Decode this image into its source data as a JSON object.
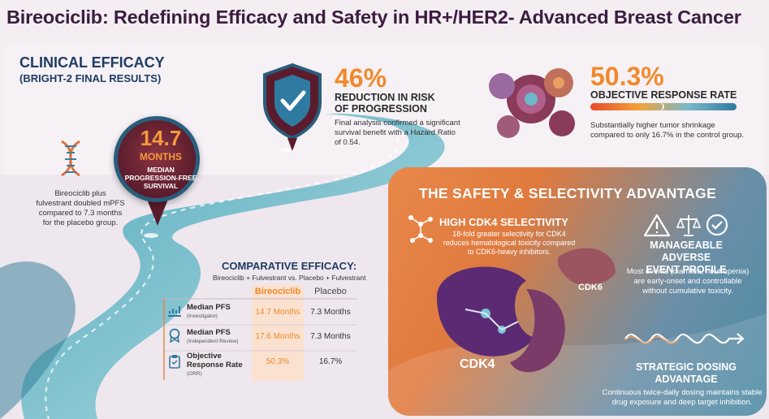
{
  "title": "Bireociclib: Redefining Efficacy and Safety in HR+/HER2- Advanced Breast Cancer",
  "efficacy": {
    "heading": "CLINICAL EFFICACY",
    "subheading": "(BRIGHT-2 FINAL RESULTS)",
    "pfs": {
      "value": "14.7",
      "unit": "MONTHS",
      "label_line1": "MEDIAN",
      "label_line2": "PROGRESSION-FREE",
      "label_line3": "SURVIVAL"
    },
    "pfs_note_line1": "Bireociclib plus",
    "pfs_note_line2": "fulvestrant doubled mPFS",
    "pfs_note_line3": "compared to 7.3 months",
    "pfs_note_line4": "for the placebo group.",
    "risk": {
      "value": "46%",
      "label_line1": "REDUCTION IN RISK",
      "label_line2": "OF PROGRESSION",
      "desc_line1": "Final analysis confirmed a significant",
      "desc_line2": "survival benefit with a Hazard Ratio",
      "desc_line3": "of 0.54."
    },
    "orr": {
      "value": "50.3%",
      "label": "OBJECTIVE RESPONSE RATE",
      "fraction": 0.503,
      "desc_line1": "Substantially higher tumor shrinkage",
      "desc_line2": "compared to only 16.7% in the control group."
    }
  },
  "comparison": {
    "title": "COMPARATIVE EFFICACY:",
    "subtitle": "Bireociclib + Fulvestrant vs. Placebo + Fulvestrant",
    "col_a": "Bireociclib",
    "col_b": "Placebo",
    "rows": [
      {
        "label": "Median PFS",
        "sub": "(Investigator)",
        "a": "14.7 Months",
        "b": "7.3 Months"
      },
      {
        "label": "Median PFS",
        "sub": "(Independent Review)",
        "a": "17.6 Months",
        "b": "7.3 Months"
      },
      {
        "label": "Objective",
        "label2": "Response Rate",
        "sub": "(ORR)",
        "a": "50.3%",
        "b": "16.7%"
      }
    ]
  },
  "safety": {
    "title": "THE SAFETY & SELECTIVITY ADVANTAGE",
    "cdk_title": "HIGH CDK4 SELECTIVITY",
    "cdk_desc_line1": "18-fold greater selectivity for CDK4",
    "cdk_desc_line2": "reduces hematological toxicity compared",
    "cdk_desc_line3": "to CDK6-heavy inhibitors.",
    "adverse_title_line1": "MANAGEABLE ADVERSE",
    "adverse_title_line2": "EVENT PROFILE",
    "adverse_desc_line1": "Most events (diarrhea, neutropenia)",
    "adverse_desc_line2": "are early-onset and controllable",
    "adverse_desc_line3": "without cumulative toxicity.",
    "cdk4": "CDK4",
    "cdk6": "CDK6",
    "dosing_title_line1": "STRATEGIC DOSING",
    "dosing_title_line2": "ADVANTAGE",
    "dosing_desc_line1": "Continuous twice-daily dosing maintains stable",
    "dosing_desc_line2": "drug exposure and deep target inhibition."
  },
  "icons": [
    "dna-icon",
    "shield-check-icon",
    "tumor-cells-icon",
    "chart-icon",
    "award-icon",
    "clipboard-icon",
    "warning-icon",
    "scale-icon",
    "check-circle-icon",
    "molecule-icon",
    "wave-arrow-icon"
  ],
  "colors": {
    "navy": "#1f3c63",
    "orange": "#f08a2c",
    "burgundy": "#5a1c2c",
    "teal": "#2f7aa0"
  }
}
